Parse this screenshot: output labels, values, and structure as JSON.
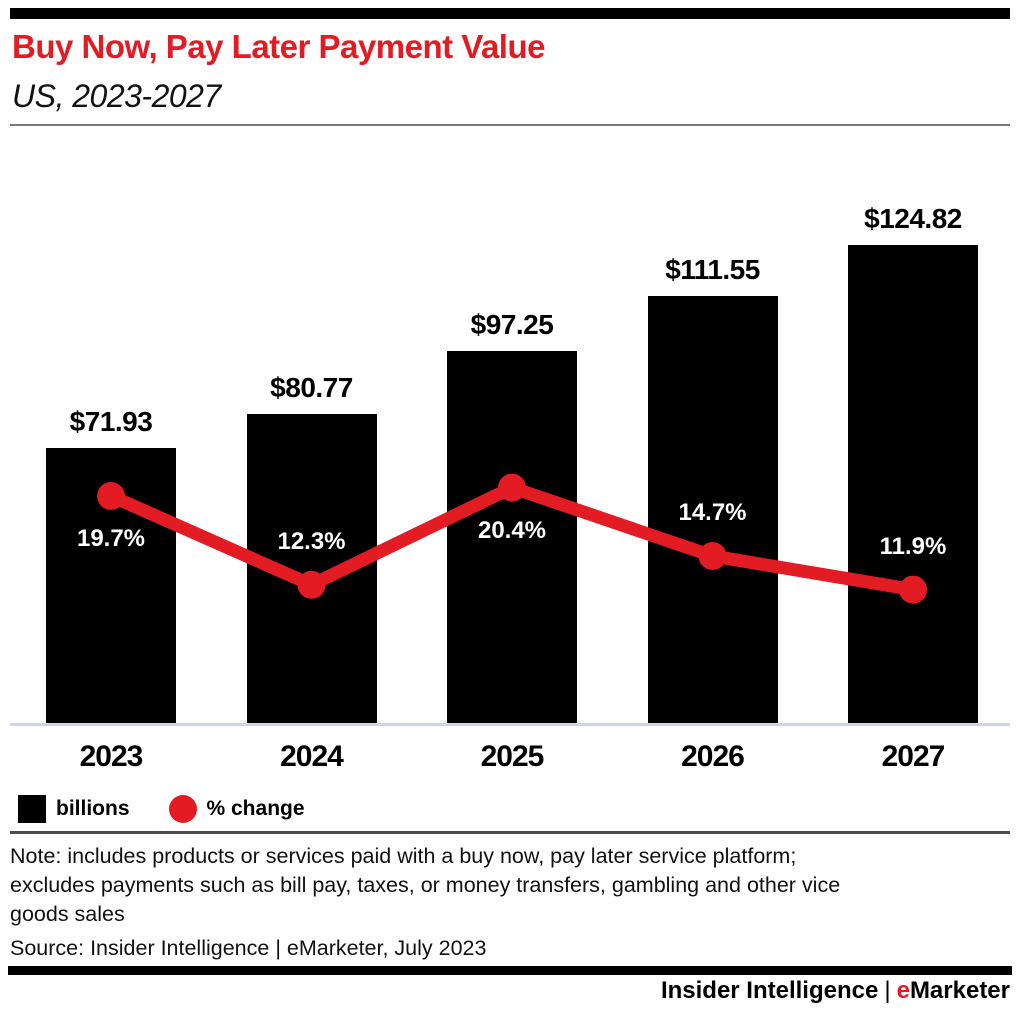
{
  "header": {
    "title": "Buy Now, Pay Later Payment Value",
    "subtitle": "US, 2023-2027"
  },
  "chart_data": {
    "type": "bar+line",
    "categories": [
      "2023",
      "2024",
      "2025",
      "2026",
      "2027"
    ],
    "series": [
      {
        "name": "billions",
        "type": "bar",
        "color": "#000000",
        "values": [
          71.93,
          80.77,
          97.25,
          111.55,
          124.82
        ],
        "labels": [
          "$71.93",
          "$80.77",
          "$97.25",
          "$111.55",
          "$124.82"
        ]
      },
      {
        "name": "% change",
        "type": "line",
        "color": "#e31b22",
        "values": [
          19.7,
          12.3,
          20.4,
          14.7,
          11.9
        ],
        "labels": [
          "19.7%",
          "12.3%",
          "20.4%",
          "14.7%",
          "11.9%"
        ]
      }
    ],
    "legend": [
      {
        "label": "billions",
        "marker": "square",
        "color": "#000000"
      },
      {
        "label": "% change",
        "marker": "circle",
        "color": "#e31b22"
      }
    ],
    "axis": {
      "grid": false,
      "legend_position": "bottom-left",
      "baseline_color": "#ccd6e8"
    }
  },
  "note": {
    "lines": [
      "Note: includes products or services paid with a buy now, pay later service platform;",
      "excludes payments such as bill pay, taxes, or money transfers, gambling and other vice",
      "goods sales"
    ]
  },
  "source": "Source: Insider Intelligence | eMarketer, July 2023",
  "footer": {
    "name": "Insider Intelligence",
    "separator": "|",
    "brand_first_letter": "e",
    "brand_rest": "Marketer"
  },
  "colors": {
    "accent_red": "#e31b22",
    "bar_black": "#000000",
    "axis_line": "#ccd6e8",
    "header_divider": "#7a7a7a",
    "legend_divider": "#4c4c4c"
  }
}
